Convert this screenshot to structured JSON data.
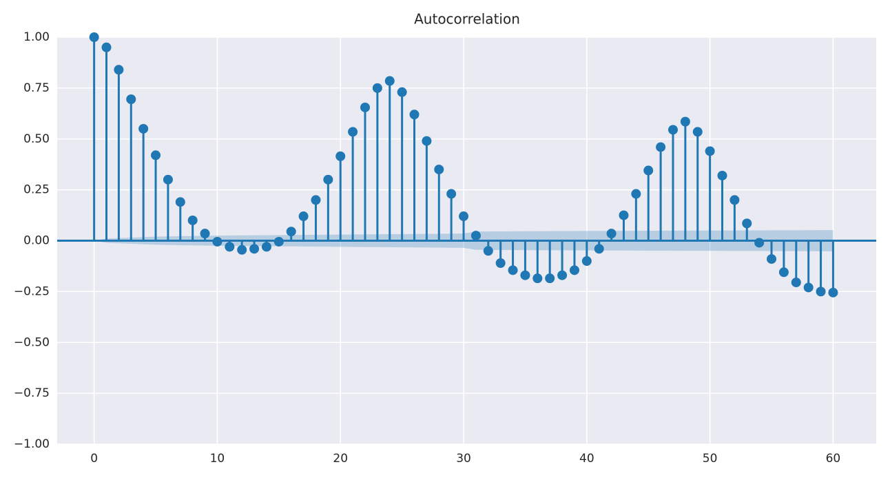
{
  "chart_data": {
    "type": "stem",
    "title": "Autocorrelation",
    "x": [
      0,
      1,
      2,
      3,
      4,
      5,
      6,
      7,
      8,
      9,
      10,
      11,
      12,
      13,
      14,
      15,
      16,
      17,
      18,
      19,
      20,
      21,
      22,
      23,
      24,
      25,
      26,
      27,
      28,
      29,
      30,
      31,
      32,
      33,
      34,
      35,
      36,
      37,
      38,
      39,
      40,
      41,
      42,
      43,
      44,
      45,
      46,
      47,
      48,
      49,
      50,
      51,
      52,
      53,
      54,
      55,
      56,
      57,
      58,
      59,
      60
    ],
    "series": [
      {
        "color": "#1f77b4",
        "values": [
          1.0,
          0.95,
          0.84,
          0.695,
          0.55,
          0.42,
          0.3,
          0.19,
          0.1,
          0.035,
          -0.005,
          -0.03,
          -0.045,
          -0.04,
          -0.03,
          -0.005,
          0.045,
          0.12,
          0.2,
          0.3,
          0.415,
          0.535,
          0.655,
          0.75,
          0.785,
          0.73,
          0.62,
          0.49,
          0.35,
          0.23,
          0.12,
          0.025,
          -0.05,
          -0.11,
          -0.145,
          -0.17,
          -0.185,
          -0.185,
          -0.17,
          -0.145,
          -0.1,
          -0.04,
          0.035,
          0.125,
          0.23,
          0.345,
          0.46,
          0.545,
          0.585,
          0.535,
          0.44,
          0.32,
          0.2,
          0.085,
          -0.01,
          -0.09,
          -0.155,
          -0.205,
          -0.23,
          -0.25,
          -0.255
        ]
      }
    ],
    "confidence_band": {
      "color": "#1f77b4",
      "x": [
        0,
        1,
        5,
        10,
        20,
        30,
        31,
        40,
        50,
        60
      ],
      "halfwidth": [
        0,
        0.01,
        0.02,
        0.025,
        0.03,
        0.035,
        0.045,
        0.048,
        0.05,
        0.052
      ]
    },
    "xlim": [
      -3,
      63.5
    ],
    "ylim": [
      -1,
      1
    ],
    "xticks": [
      0,
      10,
      20,
      30,
      40,
      50,
      60
    ],
    "yticks": [
      {
        "value": -1,
        "label": "−1.00"
      },
      {
        "value": -0.75,
        "label": "−0.75"
      },
      {
        "value": -0.5,
        "label": "−0.50"
      },
      {
        "value": -0.25,
        "label": "−0.25"
      },
      {
        "value": 0,
        "label": "0.00"
      },
      {
        "value": 0.25,
        "label": "0.25"
      },
      {
        "value": 0.5,
        "label": "0.50"
      },
      {
        "value": 0.75,
        "label": "0.75"
      },
      {
        "value": 1,
        "label": "1.00"
      }
    ],
    "grid": true
  }
}
